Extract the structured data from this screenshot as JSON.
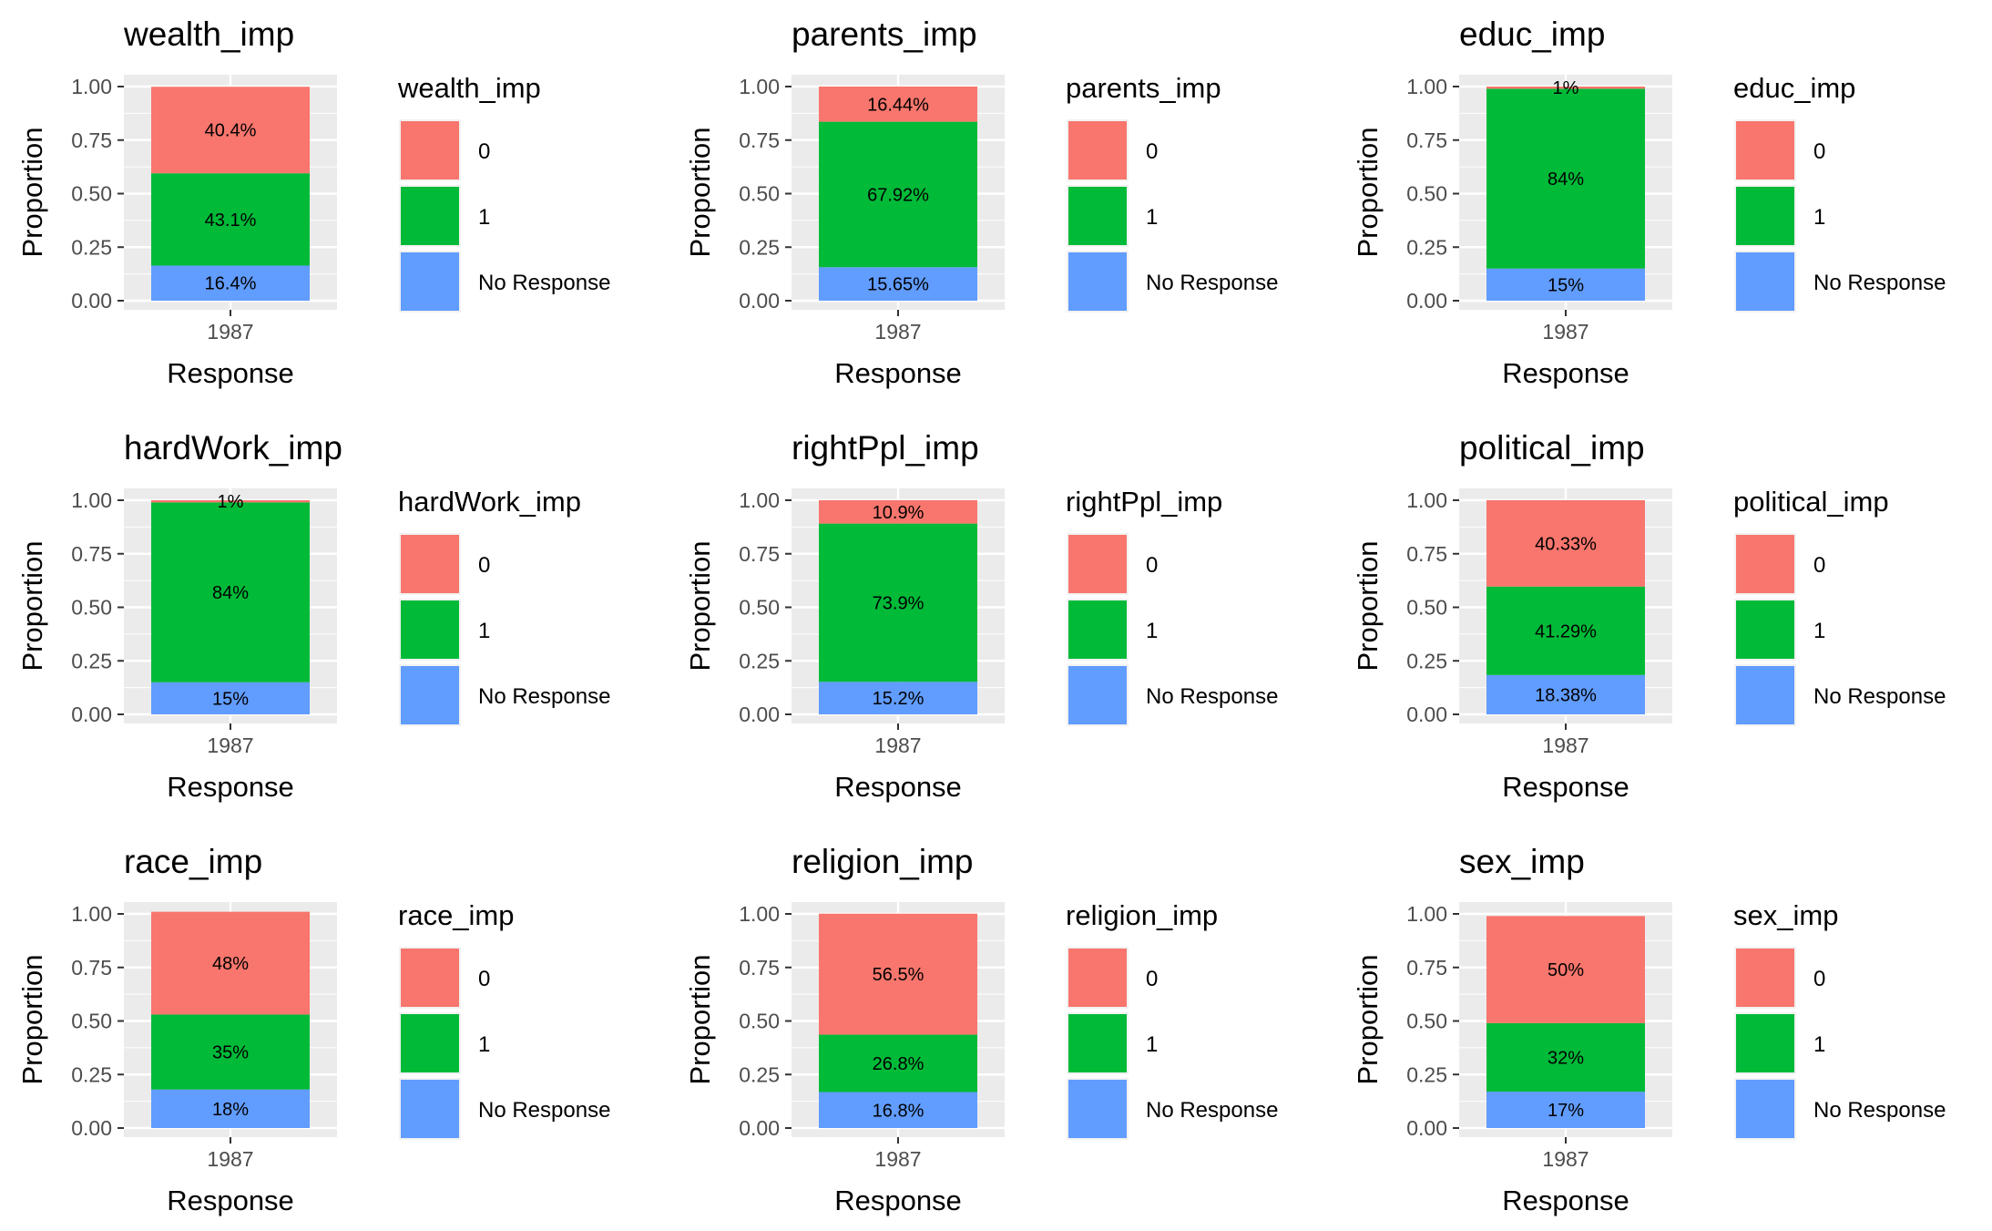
{
  "legend": {
    "entries": [
      {
        "label": "0",
        "color": "#F8766D"
      },
      {
        "label": "1",
        "color": "#00BA38"
      },
      {
        "label": "No Response",
        "color": "#619CFF"
      }
    ]
  },
  "chart_data": [
    {
      "type": "bar",
      "stacked": true,
      "title": "wealth_imp",
      "xlabel": "Response",
      "ylabel": "Proportion",
      "legend_title": "wealth_imp",
      "legend_position": "right",
      "grid": true,
      "ylim": [
        0,
        1
      ],
      "yticks": [
        "0.00",
        "0.25",
        "0.50",
        "0.75",
        "1.00"
      ],
      "categories": [
        "1987"
      ],
      "series": [
        {
          "name": "No Response",
          "values": [
            0.164
          ],
          "label": "16.4%"
        },
        {
          "name": "1",
          "values": [
            0.431
          ],
          "label": "43.1%"
        },
        {
          "name": "0",
          "values": [
            0.404
          ],
          "label": "40.4%"
        }
      ]
    },
    {
      "type": "bar",
      "stacked": true,
      "title": "parents_imp",
      "xlabel": "Response",
      "ylabel": "Proportion",
      "legend_title": "parents_imp",
      "legend_position": "right",
      "grid": true,
      "ylim": [
        0,
        1
      ],
      "yticks": [
        "0.00",
        "0.25",
        "0.50",
        "0.75",
        "1.00"
      ],
      "categories": [
        "1987"
      ],
      "series": [
        {
          "name": "No Response",
          "values": [
            0.1565
          ],
          "label": "15.65%"
        },
        {
          "name": "1",
          "values": [
            0.6792
          ],
          "label": "67.92%"
        },
        {
          "name": "0",
          "values": [
            0.1644
          ],
          "label": "16.44%"
        }
      ]
    },
    {
      "type": "bar",
      "stacked": true,
      "title": "educ_imp",
      "xlabel": "Response",
      "ylabel": "Proportion",
      "legend_title": "educ_imp",
      "legend_position": "right",
      "grid": true,
      "ylim": [
        0,
        1
      ],
      "yticks": [
        "0.00",
        "0.25",
        "0.50",
        "0.75",
        "1.00"
      ],
      "categories": [
        "1987"
      ],
      "series": [
        {
          "name": "No Response",
          "values": [
            0.15
          ],
          "label": "15%"
        },
        {
          "name": "1",
          "values": [
            0.84
          ],
          "label": "84%"
        },
        {
          "name": "0",
          "values": [
            0.01
          ],
          "label": "1%"
        }
      ]
    },
    {
      "type": "bar",
      "stacked": true,
      "title": "hardWork_imp",
      "xlabel": "Response",
      "ylabel": "Proportion",
      "legend_title": "hardWork_imp",
      "legend_position": "right",
      "grid": true,
      "ylim": [
        0,
        1
      ],
      "yticks": [
        "0.00",
        "0.25",
        "0.50",
        "0.75",
        "1.00"
      ],
      "categories": [
        "1987"
      ],
      "series": [
        {
          "name": "No Response",
          "values": [
            0.15
          ],
          "label": "15%"
        },
        {
          "name": "1",
          "values": [
            0.84
          ],
          "label": "84%"
        },
        {
          "name": "0",
          "values": [
            0.01
          ],
          "label": "1%"
        }
      ]
    },
    {
      "type": "bar",
      "stacked": true,
      "title": "rightPpl_imp",
      "xlabel": "Response",
      "ylabel": "Proportion",
      "legend_title": "rightPpl_imp",
      "legend_position": "right",
      "grid": true,
      "ylim": [
        0,
        1
      ],
      "yticks": [
        "0.00",
        "0.25",
        "0.50",
        "0.75",
        "1.00"
      ],
      "categories": [
        "1987"
      ],
      "series": [
        {
          "name": "No Response",
          "values": [
            0.152
          ],
          "label": "15.2%"
        },
        {
          "name": "1",
          "values": [
            0.739
          ],
          "label": "73.9%"
        },
        {
          "name": "0",
          "values": [
            0.109
          ],
          "label": "10.9%"
        }
      ]
    },
    {
      "type": "bar",
      "stacked": true,
      "title": "political_imp",
      "xlabel": "Response",
      "ylabel": "Proportion",
      "legend_title": "political_imp",
      "legend_position": "right",
      "grid": true,
      "ylim": [
        0,
        1
      ],
      "yticks": [
        "0.00",
        "0.25",
        "0.50",
        "0.75",
        "1.00"
      ],
      "categories": [
        "1987"
      ],
      "series": [
        {
          "name": "No Response",
          "values": [
            0.1838
          ],
          "label": "18.38%"
        },
        {
          "name": "1",
          "values": [
            0.4129
          ],
          "label": "41.29%"
        },
        {
          "name": "0",
          "values": [
            0.4033
          ],
          "label": "40.33%"
        }
      ]
    },
    {
      "type": "bar",
      "stacked": true,
      "title": "race_imp",
      "xlabel": "Response",
      "ylabel": "Proportion",
      "legend_title": "race_imp",
      "legend_position": "right",
      "grid": true,
      "ylim": [
        0,
        1
      ],
      "yticks": [
        "0.00",
        "0.25",
        "0.50",
        "0.75",
        "1.00"
      ],
      "categories": [
        "1987"
      ],
      "series": [
        {
          "name": "No Response",
          "values": [
            0.18
          ],
          "label": "18%"
        },
        {
          "name": "1",
          "values": [
            0.35
          ],
          "label": "35%"
        },
        {
          "name": "0",
          "values": [
            0.48
          ],
          "label": "48%"
        }
      ]
    },
    {
      "type": "bar",
      "stacked": true,
      "title": "religion_imp",
      "xlabel": "Response",
      "ylabel": "Proportion",
      "legend_title": "religion_imp",
      "legend_position": "right",
      "grid": true,
      "ylim": [
        0,
        1
      ],
      "yticks": [
        "0.00",
        "0.25",
        "0.50",
        "0.75",
        "1.00"
      ],
      "categories": [
        "1987"
      ],
      "series": [
        {
          "name": "No Response",
          "values": [
            0.168
          ],
          "label": "16.8%"
        },
        {
          "name": "1",
          "values": [
            0.268
          ],
          "label": "26.8%"
        },
        {
          "name": "0",
          "values": [
            0.565
          ],
          "label": "56.5%"
        }
      ]
    },
    {
      "type": "bar",
      "stacked": true,
      "title": "sex_imp",
      "xlabel": "Response",
      "ylabel": "Proportion",
      "legend_title": "sex_imp",
      "legend_position": "right",
      "grid": true,
      "ylim": [
        0,
        1
      ],
      "yticks": [
        "0.00",
        "0.25",
        "0.50",
        "0.75",
        "1.00"
      ],
      "categories": [
        "1987"
      ],
      "series": [
        {
          "name": "No Response",
          "values": [
            0.17
          ],
          "label": "17%"
        },
        {
          "name": "1",
          "values": [
            0.32
          ],
          "label": "32%"
        },
        {
          "name": "0",
          "values": [
            0.5
          ],
          "label": "50%"
        }
      ]
    }
  ]
}
